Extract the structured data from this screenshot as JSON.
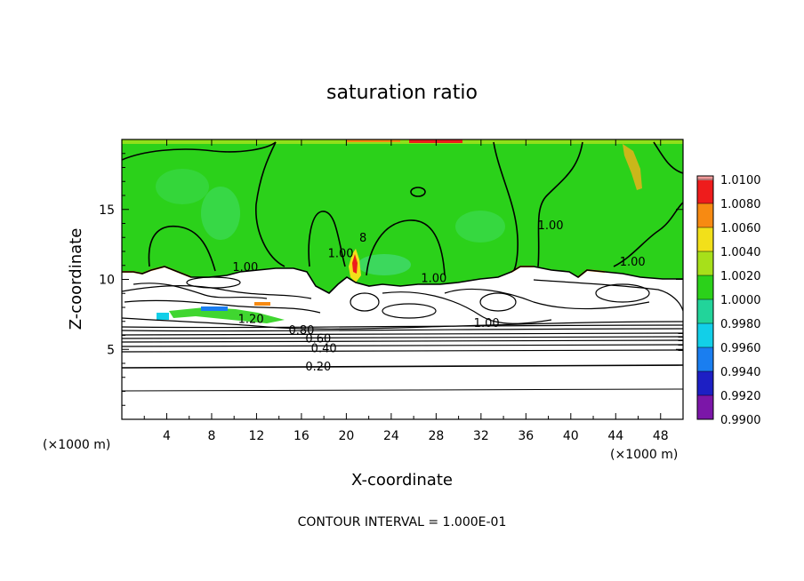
{
  "chart_data": {
    "type": "heatmap",
    "title": "saturation ratio",
    "xlabel": "X-coordinate",
    "ylabel": "Z-coordinate",
    "x_units": "(×1000 m)",
    "y_units": "(×1000 m)",
    "xlim": [
      0,
      50
    ],
    "ylim": [
      0,
      20
    ],
    "x_ticks": [
      "4",
      "8",
      "12",
      "16",
      "20",
      "24",
      "28",
      "32",
      "36",
      "40",
      "44",
      "48"
    ],
    "y_ticks": [
      "5",
      "10",
      "15"
    ],
    "colorbar": {
      "levels": [
        "0.9900",
        "0.9920",
        "0.9940",
        "0.9960",
        "0.9980",
        "1.0000",
        "1.0020",
        "1.0040",
        "1.0060",
        "1.0080",
        "1.0100"
      ],
      "colors": [
        "#7b16a8",
        "#1d1fc4",
        "#1a7ef0",
        "#12cfe8",
        "#22d49a",
        "#2bd11a",
        "#a7e01a",
        "#f2e01a",
        "#f78a12",
        "#ee1c1c",
        "#f29a9a"
      ]
    },
    "contour_labels": [
      {
        "text": "1.00",
        "x": 11,
        "z": 10.6
      },
      {
        "text": "1.00",
        "x": 19.5,
        "z": 11.6
      },
      {
        "text": "1.00",
        "x": 27.8,
        "z": 9.8
      },
      {
        "text": "1.00",
        "x": 38.2,
        "z": 13.6
      },
      {
        "text": "1.00",
        "x": 45.5,
        "z": 11.0
      },
      {
        "text": "1.00",
        "x": 32.5,
        "z": 6.6
      },
      {
        "text": "1.20",
        "x": 11.5,
        "z": 6.9
      },
      {
        "text": "0.80",
        "x": 16,
        "z": 6.1
      },
      {
        "text": "0.60",
        "x": 17.5,
        "z": 5.5
      },
      {
        "text": "0.40",
        "x": 18,
        "z": 4.8
      },
      {
        "text": "0.20",
        "x": 17.5,
        "z": 3.5
      }
    ],
    "contour_interval": "CONTOUR INTERVAL = 1.000E-01",
    "annotations": [
      "8"
    ]
  }
}
